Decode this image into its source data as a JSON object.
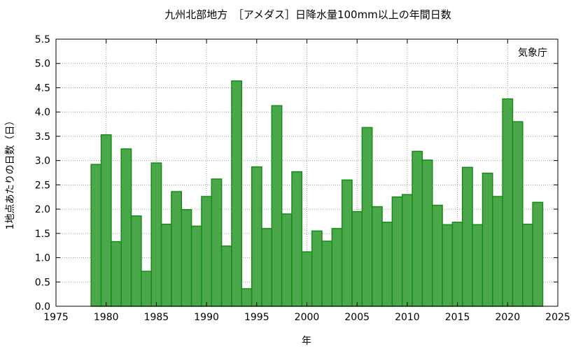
{
  "chart_data": {
    "type": "bar",
    "title": "九州北部地方　［アメダス］日降水量100mm以上の年間日数",
    "xlabel": "年",
    "ylabel": "1地点あたりの日数（日）",
    "annotation": "気象庁",
    "xlim": [
      1975,
      2025
    ],
    "ylim": [
      0.0,
      5.5
    ],
    "x_ticks": [
      "1975",
      "1980",
      "1985",
      "1990",
      "1995",
      "2000",
      "2005",
      "2010",
      "2015",
      "2020",
      "2025"
    ],
    "y_ticks": [
      "0.0",
      "0.5",
      "1.0",
      "1.5",
      "2.0",
      "2.5",
      "3.0",
      "3.5",
      "4.0",
      "4.5",
      "5.0",
      "5.5"
    ],
    "grid": true,
    "bar_color": "#4aa84a",
    "bar_edge_color": "#178a17",
    "x": [
      1979,
      1980,
      1981,
      1982,
      1983,
      1984,
      1985,
      1986,
      1987,
      1988,
      1989,
      1990,
      1991,
      1992,
      1993,
      1994,
      1995,
      1996,
      1997,
      1998,
      1999,
      2000,
      2001,
      2002,
      2003,
      2004,
      2005,
      2006,
      2007,
      2008,
      2009,
      2010,
      2011,
      2012,
      2013,
      2014,
      2015,
      2016,
      2017,
      2018,
      2019,
      2020,
      2021,
      2022,
      2023
    ],
    "values": [
      2.92,
      3.53,
      1.33,
      3.24,
      1.86,
      0.72,
      2.95,
      1.69,
      2.36,
      1.99,
      1.65,
      2.26,
      2.62,
      1.24,
      4.64,
      0.36,
      2.87,
      1.6,
      4.13,
      1.9,
      2.77,
      1.12,
      1.55,
      1.34,
      1.6,
      2.6,
      1.95,
      3.68,
      2.05,
      1.73,
      2.25,
      2.3,
      3.19,
      3.01,
      2.08,
      1.68,
      1.73,
      2.86,
      1.68,
      2.74,
      2.26,
      4.27,
      3.8,
      1.69,
      2.14
    ]
  }
}
